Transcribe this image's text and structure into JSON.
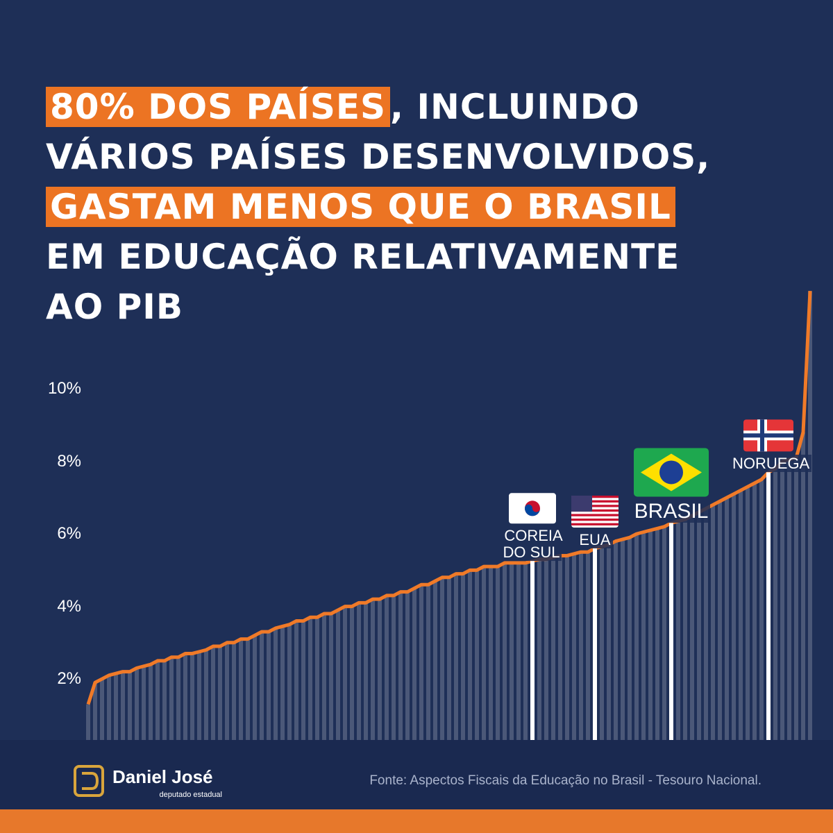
{
  "chart_data": {
    "type": "line",
    "title_lines": [
      [
        "80% DOS PAÍSES",
        ", INCLUINDO"
      ],
      [
        "VÁRIOS PAÍSES DESENVOLVIDOS,"
      ],
      [
        "GASTAM MENOS QUE O BRASIL"
      ],
      [
        "EM EDUCAÇÃO RELATIVAMENTE"
      ],
      [
        "AO PIB"
      ]
    ],
    "categories": [
      null,
      null,
      null,
      null,
      null,
      null,
      null,
      null,
      null,
      null,
      null,
      null,
      null,
      null,
      null,
      null,
      null,
      null,
      null,
      null,
      null,
      null,
      null,
      null,
      null,
      null,
      null,
      null,
      null,
      null,
      null,
      null,
      null,
      null,
      null,
      null,
      null,
      null,
      null,
      null,
      null,
      null,
      null,
      null,
      null,
      null,
      null,
      null,
      null,
      null,
      null,
      null,
      null,
      null,
      null,
      null,
      null,
      null,
      null,
      null,
      null,
      null,
      null,
      null,
      "COREIA DO SUL",
      null,
      null,
      null,
      null,
      null,
      null,
      null,
      null,
      "EUA",
      null,
      null,
      null,
      null,
      null,
      null,
      null,
      null,
      null,
      null,
      "BRASIL",
      null,
      null,
      null,
      null,
      null,
      null,
      null,
      null,
      null,
      null,
      null,
      null,
      null,
      "NORUEGA",
      null,
      null,
      null,
      null,
      null,
      null
    ],
    "values": [
      1.3,
      1.9,
      2,
      2.1,
      2.15,
      2.2,
      2.2,
      2.3,
      2.35,
      2.4,
      2.5,
      2.5,
      2.6,
      2.6,
      2.7,
      2.7,
      2.75,
      2.8,
      2.9,
      2.9,
      3,
      3,
      3.1,
      3.1,
      3.2,
      3.3,
      3.3,
      3.4,
      3.45,
      3.5,
      3.6,
      3.6,
      3.7,
      3.7,
      3.8,
      3.8,
      3.9,
      4,
      4,
      4.1,
      4.1,
      4.2,
      4.2,
      4.3,
      4.3,
      4.4,
      4.4,
      4.5,
      4.6,
      4.6,
      4.7,
      4.8,
      4.8,
      4.9,
      4.9,
      5,
      5,
      5.1,
      5.1,
      5.1,
      5.2,
      5.2,
      5.2,
      5.2,
      5.25,
      5.3,
      5.3,
      5.35,
      5.4,
      5.4,
      5.45,
      5.5,
      5.5,
      5.6,
      5.65,
      5.7,
      5.8,
      5.85,
      5.9,
      6,
      6.05,
      6.1,
      6.15,
      6.2,
      6.3,
      6.35,
      6.4,
      6.5,
      6.6,
      6.7,
      6.8,
      6.9,
      7,
      7.1,
      7.2,
      7.3,
      7.4,
      7.5,
      7.7,
      7.8,
      8,
      8.05,
      8.1,
      8.8,
      12.7
    ],
    "color": "#f07a28",
    "bar_color": "#4b5878",
    "ylim": [
      0,
      13
    ],
    "yticks": [
      {
        "value": 2,
        "label": "2%"
      },
      {
        "value": 4,
        "label": "4%"
      },
      {
        "value": 6,
        "label": "6%"
      },
      {
        "value": 8,
        "label": "8%"
      },
      {
        "value": 10,
        "label": "10%"
      }
    ],
    "grid": false,
    "source": "Fonte: Aspectos Fiscais da Educação no Brasil - Tesouro Nacional.",
    "brand": "Daniel José",
    "brand_subtitle": "deputado estadual"
  }
}
